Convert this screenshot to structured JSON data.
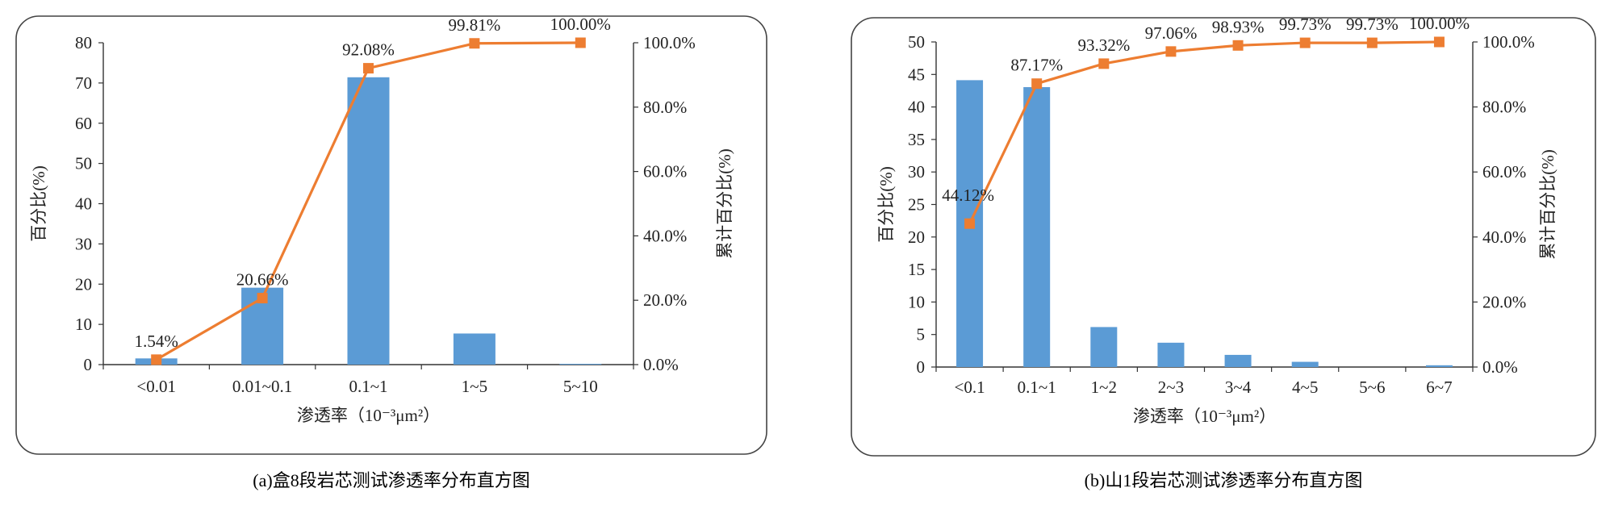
{
  "chart_data": [
    {
      "type": "bar+line",
      "title": "",
      "xlabel": "渗透率（10⁻³μm²）",
      "ylabel": "百分比(%)",
      "y2label": "累计百分比(%)",
      "categories": [
        "<0.01",
        "0.01~0.1",
        "0.1~1",
        "1~5",
        "5~10"
      ],
      "series": [
        {
          "name": "百分比",
          "type": "bar",
          "color": "#5b9bd5",
          "values": [
            1.54,
            19.12,
            71.42,
            7.73,
            0.19
          ]
        },
        {
          "name": "累计百分比",
          "type": "line",
          "color": "#ed7d31",
          "values": [
            1.54,
            20.66,
            92.08,
            99.81,
            100.0
          ]
        }
      ],
      "data_labels": [
        "1.54%",
        "20.66%",
        "92.08%",
        "99.81%",
        "100.00%"
      ],
      "ylim": [
        0,
        80
      ],
      "yticks": [
        "0",
        "10",
        "20",
        "30",
        "40",
        "50",
        "60",
        "70",
        "80"
      ],
      "y2lim": [
        0,
        100
      ],
      "y2ticks": [
        "0.0%",
        "20.0%",
        "40.0%",
        "60.0%",
        "80.0%",
        "100.0%"
      ],
      "caption": "(a)盒8段岩芯测试渗透率分布直方图"
    },
    {
      "type": "bar+line",
      "title": "",
      "xlabel": "渗透率（10⁻³μm²）",
      "ylabel": "百分比(%)",
      "y2label": "累计百分比(%)",
      "categories": [
        "<0.1",
        "0.1~1",
        "1~2",
        "2~3",
        "3~4",
        "4~5",
        "5~6",
        "6~7"
      ],
      "series": [
        {
          "name": "百分比",
          "type": "bar",
          "color": "#5b9bd5",
          "values": [
            44.12,
            43.05,
            6.15,
            3.74,
            1.87,
            0.8,
            0.0,
            0.27
          ]
        },
        {
          "name": "累计百分比",
          "type": "line",
          "color": "#ed7d31",
          "values": [
            44.12,
            87.17,
            93.32,
            97.06,
            98.93,
            99.73,
            99.73,
            100.0
          ]
        }
      ],
      "data_labels": [
        "44.12%",
        "87.17%",
        "93.32%",
        "97.06%",
        "98.93%",
        "99.73%",
        "99.73%",
        "100.00%"
      ],
      "ylim": [
        0,
        50
      ],
      "yticks": [
        "0",
        "5",
        "10",
        "15",
        "20",
        "25",
        "30",
        "35",
        "40",
        "45",
        "50"
      ],
      "y2lim": [
        0,
        100
      ],
      "y2ticks": [
        "0.0%",
        "20.0%",
        "40.0%",
        "60.0%",
        "80.0%",
        "100.0%"
      ],
      "caption": "(b)山1段岩芯测试渗透率分布直方图"
    }
  ]
}
